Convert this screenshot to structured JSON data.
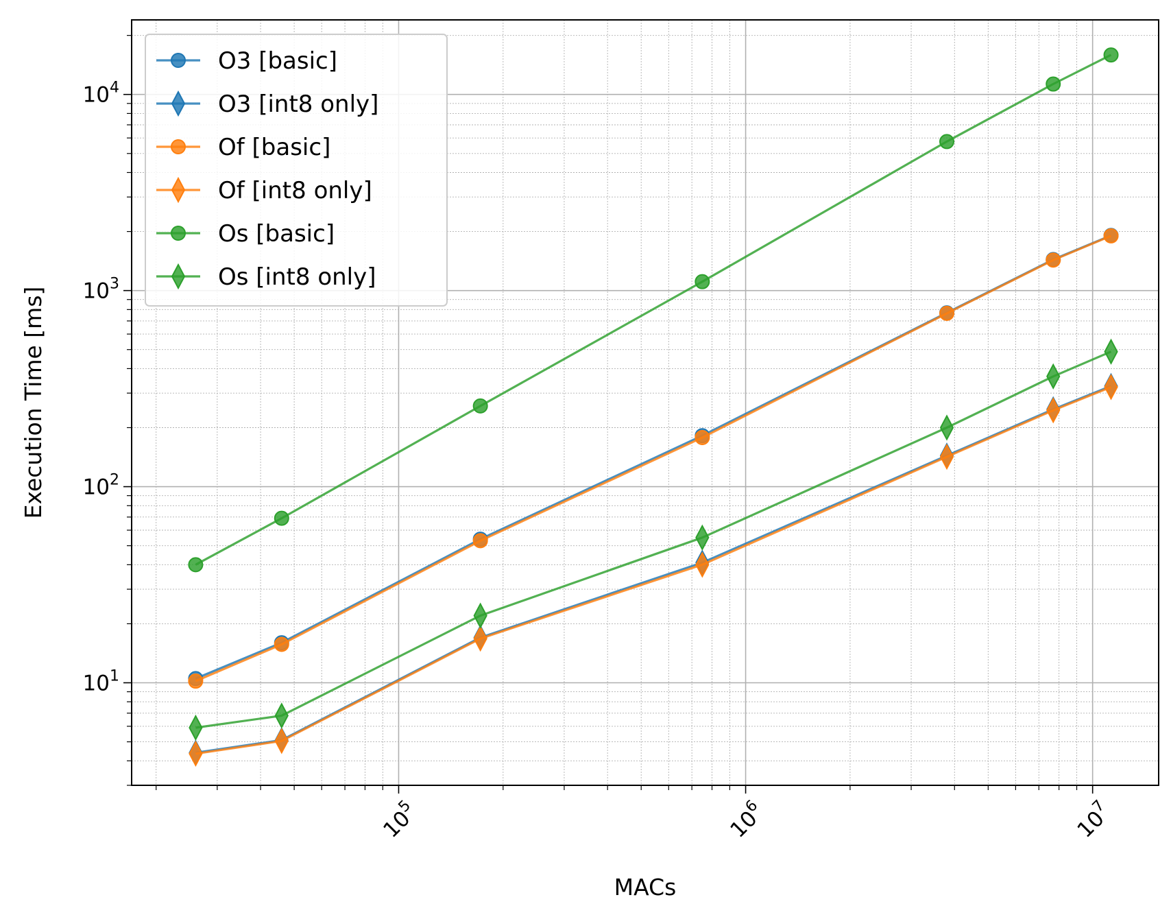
{
  "chart_data": {
    "type": "line",
    "xlabel": "MACs",
    "ylabel": "Execution Time [ms]",
    "xscale": "log",
    "yscale": "log",
    "xlim": [
      17000,
      15500000
    ],
    "ylim": [
      3.0,
      24000
    ],
    "x_ticks": [
      {
        "value": 100000,
        "base": "10",
        "exp": "5"
      },
      {
        "value": 1000000,
        "base": "10",
        "exp": "6"
      },
      {
        "value": 10000000,
        "base": "10",
        "exp": "7"
      }
    ],
    "y_ticks": [
      {
        "value": 10,
        "base": "10",
        "exp": "1"
      },
      {
        "value": 100,
        "base": "10",
        "exp": "2"
      },
      {
        "value": 1000,
        "base": "10",
        "exp": "3"
      },
      {
        "value": 10000,
        "base": "10",
        "exp": "4"
      }
    ],
    "grid": "major and minor",
    "legend_position": "top-left",
    "x": [
      26000,
      46000,
      172000,
      750000,
      3800000,
      7700000,
      11300000
    ],
    "series": [
      {
        "name": "O3 [basic]",
        "color": "#1f77b4",
        "marker": "circle",
        "values": [
          10.5,
          16,
          54,
          182,
          770,
          1440,
          1910
        ]
      },
      {
        "name": "O3 [int8 only]",
        "color": "#1f77b4",
        "marker": "diamond",
        "values": [
          4.4,
          5.1,
          17,
          41,
          144,
          248,
          326
        ]
      },
      {
        "name": "Of [basic]",
        "color": "#ff7f0e",
        "marker": "circle",
        "values": [
          10.2,
          15.7,
          53,
          178,
          765,
          1430,
          1900
        ]
      },
      {
        "name": "Of [int8 only]",
        "color": "#ff7f0e",
        "marker": "diamond",
        "values": [
          4.35,
          5.05,
          16.8,
          40,
          142,
          245,
          322
        ]
      },
      {
        "name": "Os [basic]",
        "color": "#2ca02c",
        "marker": "circle",
        "values": [
          40,
          69,
          258,
          1110,
          5750,
          11300,
          15900
        ]
      },
      {
        "name": "Os [int8 only]",
        "color": "#2ca02c",
        "marker": "diamond",
        "values": [
          5.9,
          6.8,
          22,
          55,
          200,
          365,
          488
        ]
      }
    ]
  }
}
